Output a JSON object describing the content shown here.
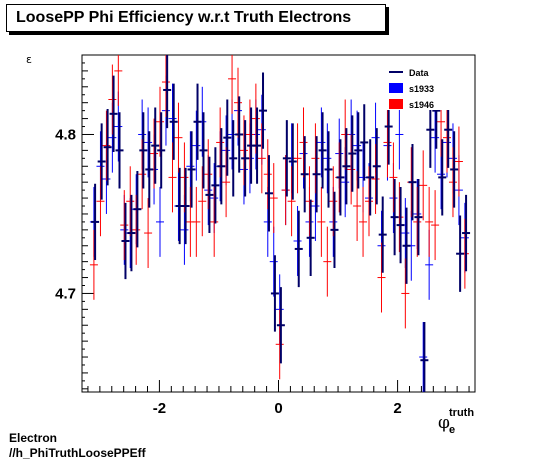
{
  "chart_data": {
    "type": "scatter",
    "title": "LoosePP Phi Efficiency w.r.t Truth Electrons",
    "ylabel": "ε",
    "xlabel_main": "φ",
    "xlabel_sub": "e",
    "xlabel_sup": "truth",
    "xlim": [
      -3.3,
      3.3
    ],
    "ylim": [
      4.638,
      4.85
    ],
    "xticks": [
      -2,
      0,
      2
    ],
    "xtick_labels": [
      "-2",
      "0",
      "2"
    ],
    "yticks": [
      4.7,
      4.8
    ],
    "ytick_labels": [
      "4.7",
      "4.8"
    ],
    "legend": {
      "position": "top-right",
      "entries": [
        "Data",
        "s1933",
        "s1946"
      ]
    },
    "colors": {
      "data": "#000066",
      "s1933": "#0000ff",
      "s1946": "#ff0000"
    },
    "series": [
      {
        "name": "s1933",
        "x": [
          -3.1,
          -2.99,
          -2.89,
          -2.79,
          -2.69,
          -2.59,
          -2.49,
          -2.39,
          -2.29,
          -2.19,
          -2.09,
          -1.99,
          -1.89,
          -1.78,
          -1.68,
          -1.58,
          -1.48,
          -1.38,
          -1.28,
          -1.18,
          -1.08,
          -0.98,
          -0.88,
          -0.78,
          -0.68,
          -0.58,
          -0.48,
          -0.38,
          -0.28,
          -0.18,
          -0.08,
          0.02,
          0.12,
          0.22,
          0.32,
          0.42,
          0.52,
          0.62,
          0.72,
          0.82,
          0.92,
          1.02,
          1.12,
          1.22,
          1.32,
          1.42,
          1.52,
          1.63,
          1.73,
          1.83,
          1.93,
          2.03,
          2.13,
          2.23,
          2.33,
          2.43,
          2.53,
          2.63,
          2.73,
          2.83,
          2.93,
          3.03,
          3.13
        ],
        "y": [
          4.745,
          4.78,
          4.772,
          4.798,
          4.805,
          4.74,
          4.738,
          4.753,
          4.8,
          4.795,
          4.778,
          4.745,
          4.815,
          4.81,
          4.755,
          4.74,
          4.78,
          4.793,
          4.808,
          4.765,
          4.76,
          4.78,
          4.79,
          4.8,
          4.815,
          4.778,
          4.785,
          4.8,
          4.803,
          4.745,
          4.72,
          4.69,
          4.765,
          4.785,
          4.733,
          4.788,
          4.745,
          4.755,
          4.795,
          4.785,
          4.745,
          4.788,
          4.77,
          4.8,
          4.793,
          4.773,
          4.76,
          4.798,
          4.73,
          4.793,
          4.76,
          4.8,
          4.738,
          4.73,
          4.75,
          4.66,
          4.718,
          4.798,
          4.775,
          4.795,
          4.785,
          4.765,
          4.735
        ],
        "err": [
          0.022,
          0.022,
          0.022,
          0.022,
          0.022,
          0.022,
          0.022,
          0.022,
          0.022,
          0.022,
          0.022,
          0.022,
          0.022,
          0.022,
          0.022,
          0.022,
          0.022,
          0.022,
          0.022,
          0.022,
          0.022,
          0.022,
          0.022,
          0.022,
          0.022,
          0.022,
          0.022,
          0.022,
          0.022,
          0.022,
          0.022,
          0.022,
          0.022,
          0.022,
          0.022,
          0.022,
          0.022,
          0.022,
          0.022,
          0.022,
          0.022,
          0.022,
          0.022,
          0.022,
          0.022,
          0.022,
          0.022,
          0.022,
          0.022,
          0.022,
          0.022,
          0.022,
          0.022,
          0.022,
          0.022,
          0.022,
          0.022,
          0.022,
          0.022,
          0.022,
          0.022,
          0.022,
          0.022
        ]
      },
      {
        "name": "s1946",
        "x": [
          -3.1,
          -2.99,
          -2.89,
          -2.79,
          -2.69,
          -2.59,
          -2.49,
          -2.39,
          -2.29,
          -2.19,
          -2.09,
          -1.99,
          -1.89,
          -1.78,
          -1.68,
          -1.58,
          -1.48,
          -1.38,
          -1.28,
          -1.18,
          -1.08,
          -0.98,
          -0.88,
          -0.78,
          -0.68,
          -0.58,
          -0.48,
          -0.38,
          -0.28,
          -0.18,
          -0.08,
          0.02,
          0.12,
          0.22,
          0.32,
          0.42,
          0.52,
          0.62,
          0.72,
          0.82,
          0.92,
          1.02,
          1.12,
          1.22,
          1.32,
          1.42,
          1.52,
          1.63,
          1.73,
          1.83,
          1.93,
          2.03,
          2.13,
          2.23,
          2.33,
          2.43,
          2.53,
          2.63,
          2.73,
          2.83,
          2.93,
          3.03,
          3.13
        ],
        "y": [
          4.718,
          4.758,
          4.793,
          4.822,
          4.84,
          4.743,
          4.758,
          4.74,
          4.775,
          4.738,
          4.788,
          4.808,
          4.833,
          4.773,
          4.798,
          4.773,
          4.745,
          4.745,
          4.758,
          4.775,
          4.745,
          4.795,
          4.77,
          4.835,
          4.82,
          4.79,
          4.8,
          4.81,
          4.785,
          4.775,
          4.76,
          4.668,
          4.765,
          4.758,
          4.785,
          4.795,
          4.758,
          4.785,
          4.745,
          4.72,
          4.758,
          4.773,
          4.8,
          4.778,
          4.755,
          4.745,
          4.758,
          4.772,
          4.71,
          4.795,
          4.773,
          4.748,
          4.7,
          4.77,
          4.745,
          4.768,
          4.745,
          4.743,
          4.808,
          4.798,
          4.77,
          4.783,
          4.725
        ],
        "err": [
          0.022,
          0.022,
          0.022,
          0.022,
          0.022,
          0.022,
          0.022,
          0.022,
          0.022,
          0.022,
          0.022,
          0.022,
          0.022,
          0.022,
          0.022,
          0.022,
          0.022,
          0.022,
          0.022,
          0.022,
          0.022,
          0.022,
          0.022,
          0.022,
          0.022,
          0.022,
          0.022,
          0.022,
          0.022,
          0.022,
          0.022,
          0.022,
          0.022,
          0.022,
          0.022,
          0.022,
          0.022,
          0.022,
          0.022,
          0.022,
          0.022,
          0.022,
          0.022,
          0.022,
          0.022,
          0.022,
          0.022,
          0.022,
          0.022,
          0.022,
          0.022,
          0.022,
          0.022,
          0.022,
          0.022,
          0.022,
          0.022,
          0.022,
          0.022,
          0.022,
          0.022,
          0.022,
          0.022
        ]
      },
      {
        "name": "Data",
        "x": [
          -3.08,
          -2.97,
          -2.87,
          -2.77,
          -2.67,
          -2.57,
          -2.47,
          -2.37,
          -2.27,
          -2.17,
          -2.07,
          -1.97,
          -1.87,
          -1.76,
          -1.66,
          -1.56,
          -1.46,
          -1.36,
          -1.26,
          -1.16,
          -1.06,
          -0.96,
          -0.86,
          -0.76,
          -0.66,
          -0.56,
          -0.46,
          -0.36,
          -0.26,
          -0.16,
          -0.06,
          0.04,
          0.14,
          0.24,
          0.34,
          0.44,
          0.54,
          0.64,
          0.74,
          0.84,
          0.94,
          1.04,
          1.14,
          1.24,
          1.34,
          1.44,
          1.54,
          1.65,
          1.75,
          1.85,
          1.95,
          2.05,
          2.15,
          2.25,
          2.35,
          2.45,
          2.55,
          2.65,
          2.75,
          2.85,
          2.95,
          3.05,
          3.15
        ],
        "y": [
          4.745,
          4.783,
          4.792,
          4.813,
          4.79,
          4.733,
          4.738,
          4.753,
          4.79,
          4.778,
          4.793,
          4.79,
          4.828,
          4.808,
          4.755,
          4.755,
          4.778,
          4.808,
          4.79,
          4.762,
          4.768,
          4.78,
          4.798,
          4.785,
          4.8,
          4.785,
          4.793,
          4.793,
          4.815,
          4.763,
          4.7,
          4.68,
          4.785,
          4.783,
          4.728,
          4.775,
          4.735,
          4.775,
          4.79,
          4.778,
          4.74,
          4.773,
          4.78,
          4.788,
          4.79,
          4.795,
          4.773,
          4.78,
          4.737,
          4.805,
          4.748,
          4.743,
          4.73,
          4.77,
          4.748,
          4.658,
          4.803,
          4.815,
          4.773,
          4.803,
          4.778,
          4.725,
          4.738
        ],
        "err": [
          0.024,
          0.024,
          0.024,
          0.024,
          0.024,
          0.024,
          0.024,
          0.024,
          0.024,
          0.024,
          0.024,
          0.024,
          0.024,
          0.024,
          0.024,
          0.024,
          0.024,
          0.024,
          0.024,
          0.024,
          0.024,
          0.024,
          0.024,
          0.024,
          0.024,
          0.024,
          0.024,
          0.024,
          0.024,
          0.024,
          0.024,
          0.024,
          0.024,
          0.024,
          0.024,
          0.024,
          0.024,
          0.024,
          0.024,
          0.024,
          0.024,
          0.024,
          0.024,
          0.024,
          0.024,
          0.024,
          0.024,
          0.024,
          0.024,
          0.024,
          0.024,
          0.024,
          0.024,
          0.024,
          0.024,
          0.024,
          0.024,
          0.024,
          0.024,
          0.024,
          0.024,
          0.024,
          0.024
        ]
      }
    ]
  },
  "footer": {
    "line1": "Electron",
    "line2": "//h_PhiTruthLoosePPEff"
  }
}
